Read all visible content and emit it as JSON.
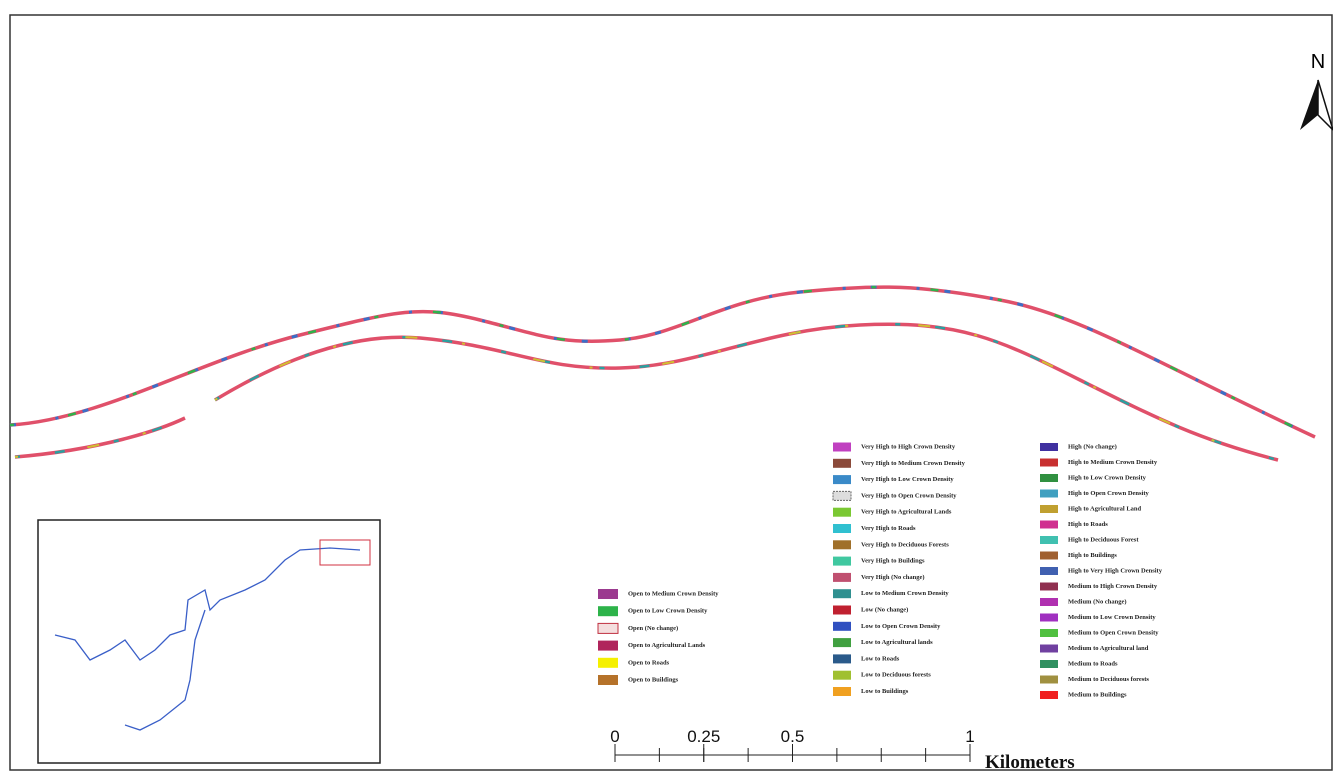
{
  "north": "N",
  "scale": {
    "ticks": [
      0,
      0.25,
      0.5,
      1
    ],
    "unit": "Kilometers"
  },
  "legend": {
    "open": [
      {
        "label": "Open to Medium Crown Density",
        "color": "#9b3a8f"
      },
      {
        "label": "Open to Low Crown Density",
        "color": "#2db34a"
      },
      {
        "label": "Open (No change)",
        "color": "#f4dede"
      },
      {
        "label": "Open to Agricultural Lands",
        "color": "#b0245c"
      },
      {
        "label": "Open to Roads",
        "color": "#f5f000"
      },
      {
        "label": "Open to Buildings",
        "color": "#b5722a"
      }
    ],
    "very_high_low": [
      {
        "label": "Very High to High Crown Density",
        "color": "#c040c0"
      },
      {
        "label": "Very High to Medium Crown Density",
        "color": "#8b4a3a"
      },
      {
        "label": "Very High to Low Crown Density",
        "color": "#3a8ac8"
      },
      {
        "label": "Very High to Open Crown Density",
        "color": "#dddddd"
      },
      {
        "label": "Very High to Agricultural Lands",
        "color": "#7ac832"
      },
      {
        "label": "Very High to Roads",
        "color": "#30c0d0"
      },
      {
        "label": "Very High to Deciduous Forests",
        "color": "#a0702a"
      },
      {
        "label": "Very High to Buildings",
        "color": "#40c8a0"
      },
      {
        "label": "Very High (No change)",
        "color": "#c05070"
      },
      {
        "label": "Low to Medium Crown Density",
        "color": "#309090"
      },
      {
        "label": "Low (No change)",
        "color": "#c02030"
      },
      {
        "label": "Low to Open Crown Density",
        "color": "#3050c0"
      },
      {
        "label": "Low to Agricultural lands",
        "color": "#40a040"
      },
      {
        "label": "Low to Roads",
        "color": "#2a5a8a"
      },
      {
        "label": "Low to Deciduous forests",
        "color": "#a0c030"
      },
      {
        "label": "Low to Buildings",
        "color": "#f0a020"
      }
    ],
    "high_medium": [
      {
        "label": "High (No change)",
        "color": "#4030a0"
      },
      {
        "label": "High to Medium Crown Density",
        "color": "#c83030"
      },
      {
        "label": "High to Low Crown Density",
        "color": "#309040"
      },
      {
        "label": "High to Open Crown Density",
        "color": "#40a0c0"
      },
      {
        "label": "High to Agricultural Land",
        "color": "#c0a030"
      },
      {
        "label": "High to Roads",
        "color": "#d03090"
      },
      {
        "label": "High to Deciduous Forest",
        "color": "#40c0b0"
      },
      {
        "label": "High to Buildings",
        "color": "#a06030"
      },
      {
        "label": "High to Very High Crown Density",
        "color": "#4060b0"
      },
      {
        "label": "Medium to High Crown Density",
        "color": "#903050"
      },
      {
        "label": "Medium (No change)",
        "color": "#b030b0"
      },
      {
        "label": "Medium to Low Crown Density",
        "color": "#a030c0"
      },
      {
        "label": "Medium to Open Crown Density",
        "color": "#50c040"
      },
      {
        "label": "Medium to Agricultural land",
        "color": "#7040a0"
      },
      {
        "label": "Medium to Roads",
        "color": "#309060"
      },
      {
        "label": "Medium to Deciduous forests",
        "color": "#a09040"
      },
      {
        "label": "Medium to Buildings",
        "color": "#f02020"
      }
    ]
  }
}
